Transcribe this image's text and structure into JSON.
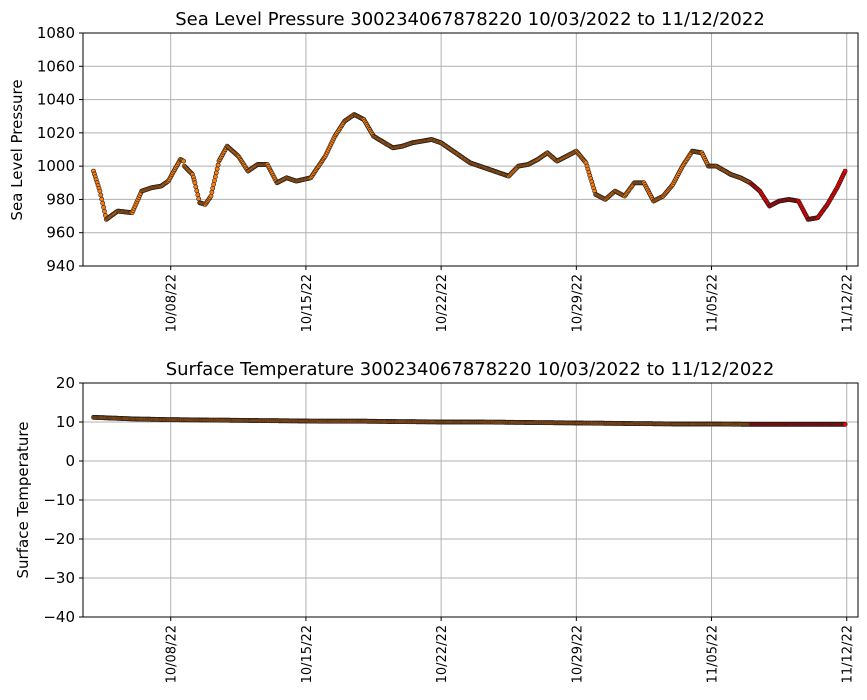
{
  "chart_data": [
    {
      "type": "scatter",
      "title": "Sea Level Pressure 300234067878220  10/03/2022 to 11/12/2022",
      "ylabel": "Sea Level Pressure",
      "xlabel": "",
      "ylim": [
        940,
        1080
      ],
      "yticks": [
        "940",
        "960",
        "980",
        "1000",
        "1020",
        "1040",
        "1060",
        "1080"
      ],
      "xlim": [
        "2022-10-03T11:00",
        "2022-11-12T14:00"
      ],
      "xticks": [
        "10/08/22",
        "10/15/22",
        "10/22/22",
        "10/29/22",
        "11/05/22",
        "11/12/22"
      ],
      "grid": true,
      "colors": {
        "early": "#ff7f0e",
        "late": "#ff0000",
        "edge": "#1a1a1a"
      },
      "x": [
        "2022-10-04T00:00",
        "2022-10-04T08:00",
        "2022-10-04T16:00",
        "2022-10-05T06:00",
        "2022-10-06T00:00",
        "2022-10-06T12:00",
        "2022-10-07T00:00",
        "2022-10-07T12:00",
        "2022-10-07T21:00",
        "2022-10-08T12:00",
        "2022-10-08T16:00",
        "2022-10-08T17:00",
        "2022-10-09T03:00",
        "2022-10-09T06:00",
        "2022-10-09T12:00",
        "2022-10-09T19:00",
        "2022-10-10T02:00",
        "2022-10-10T12:00",
        "2022-10-10T22:00",
        "2022-10-11T12:00",
        "2022-10-12T00:00",
        "2022-10-12T12:00",
        "2022-10-13T00:00",
        "2022-10-13T12:00",
        "2022-10-14T00:00",
        "2022-10-14T12:00",
        "2022-10-15T06:00",
        "2022-10-16T00:00",
        "2022-10-16T12:00",
        "2022-10-17T00:00",
        "2022-10-17T12:00",
        "2022-10-18T00:00",
        "2022-10-18T12:00",
        "2022-10-19T12:00",
        "2022-10-20T00:00",
        "2022-10-20T12:00",
        "2022-10-21T12:00",
        "2022-10-22T00:00",
        "2022-10-22T12:00",
        "2022-10-23T12:00",
        "2022-10-24T12:00",
        "2022-10-25T12:00",
        "2022-10-26T00:00",
        "2022-10-26T12:00",
        "2022-10-27T00:00",
        "2022-10-27T12:00",
        "2022-10-28T00:00",
        "2022-10-28T12:00",
        "2022-10-29T00:00",
        "2022-10-29T12:00",
        "2022-10-30T00:00",
        "2022-10-30T12:00",
        "2022-10-31T00:00",
        "2022-10-31T12:00",
        "2022-11-01T00:00",
        "2022-11-01T12:00",
        "2022-11-02T00:00",
        "2022-11-02T12:00",
        "2022-11-03T00:00",
        "2022-11-03T12:00",
        "2022-11-04T00:00",
        "2022-11-04T12:00",
        "2022-11-04T20:00",
        "2022-11-05T06:00",
        "2022-11-06T00:00",
        "2022-11-06T12:00",
        "2022-11-07T00:00",
        "2022-11-07T12:00",
        "2022-11-08T00:00",
        "2022-11-08T12:00",
        "2022-11-09T00:00",
        "2022-11-09T12:00",
        "2022-11-10T00:00",
        "2022-11-10T12:00",
        "2022-11-11T00:00",
        "2022-11-11T12:00",
        "2022-11-11T22:00"
      ],
      "y": [
        997,
        985,
        968,
        973,
        972,
        985,
        987,
        988,
        991,
        1004,
        1003,
        1000,
        995,
        990,
        978,
        977,
        982,
        1003,
        1012,
        1006,
        997,
        1001,
        1001,
        990,
        993,
        991,
        993,
        1006,
        1018,
        1027,
        1031,
        1028,
        1018,
        1011,
        1012,
        1014,
        1016,
        1014,
        1010,
        1002,
        998,
        994,
        1000,
        1001,
        1004,
        1008,
        1003,
        1006,
        1009,
        1002,
        983,
        980,
        985,
        982,
        990,
        990,
        979,
        982,
        989,
        1000,
        1009,
        1008,
        1000,
        1000,
        995,
        993,
        990,
        985,
        976,
        979,
        980,
        979,
        968,
        969,
        977,
        987,
        997
      ],
      "series_split_date": "2022-10-31T00:00"
    },
    {
      "type": "scatter",
      "title": "Surface Temperature 300234067878220  10/03/2022 to 11/12/2022",
      "ylabel": "Surface Temperature",
      "xlabel": "",
      "ylim": [
        -40,
        20
      ],
      "yticks": [
        "−40",
        "−30",
        "−20",
        "−10",
        "0",
        "10",
        "20"
      ],
      "xlim": [
        "2022-10-03T11:00",
        "2022-11-12T14:00"
      ],
      "xticks": [
        "10/08/22",
        "10/15/22",
        "10/22/22",
        "10/29/22",
        "11/05/22",
        "11/12/22"
      ],
      "grid": true,
      "colors": {
        "early": "#ff7f0e",
        "late": "#ff0000",
        "edge": "#1a1a1a"
      },
      "x": [
        "2022-10-04T00:00",
        "2022-10-05T00:00",
        "2022-10-06T00:00",
        "2022-10-08T00:00",
        "2022-10-10T00:00",
        "2022-10-12T00:00",
        "2022-10-14T00:00",
        "2022-10-16T00:00",
        "2022-10-18T00:00",
        "2022-10-20T00:00",
        "2022-10-22T00:00",
        "2022-10-24T00:00",
        "2022-10-26T00:00",
        "2022-10-28T00:00",
        "2022-10-30T00:00",
        "2022-11-01T00:00",
        "2022-11-03T00:00",
        "2022-11-05T00:00",
        "2022-11-07T00:00",
        "2022-11-09T00:00",
        "2022-11-11T00:00",
        "2022-11-11T22:00"
      ],
      "y": [
        11.2,
        11.0,
        10.8,
        10.6,
        10.5,
        10.4,
        10.3,
        10.2,
        10.2,
        10.1,
        10.0,
        10.0,
        9.9,
        9.8,
        9.7,
        9.6,
        9.5,
        9.5,
        9.4,
        9.4,
        9.4,
        9.4
      ],
      "series_split_date": "2022-10-31T00:00"
    }
  ]
}
